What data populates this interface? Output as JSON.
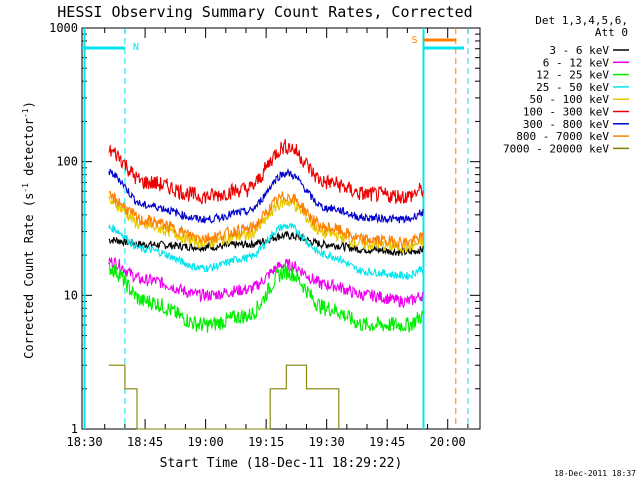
{
  "chart_data": {
    "type": "line",
    "title": "HESSI Observing Summary Count Rates, Corrected",
    "xlabel": "Start Time (18-Dec-11 18:29:22)",
    "ylabel_main": "Corrected Count Rate (s",
    "ylabel_sup1": "-1",
    "ylabel_mid": " detector",
    "ylabel_sup2": "-1",
    "ylabel_end": ")",
    "yscale": "log",
    "ylim": [
      1,
      1000
    ],
    "xlim": [
      "18:29:22",
      "20:08:00"
    ],
    "x_ticks": [
      "18:30",
      "18:45",
      "19:00",
      "19:15",
      "19:30",
      "19:45",
      "20:00"
    ],
    "y_ticks": [
      "1",
      "10",
      "100",
      "1000"
    ],
    "legend_header": [
      "Det 1,3,4,5,6,",
      "Att 0"
    ],
    "legend_placement": "right",
    "footer_date": "18-Dec-2011 18:37",
    "markers": {
      "night_label": "N",
      "saa_label": "S",
      "night_color": "#00e5ee",
      "saa_color": "#ff7f00"
    },
    "series": [
      {
        "name": "3 - 6 keV",
        "color": "#000000",
        "x": [
          "18:36",
          "18:45",
          "19:00",
          "19:10",
          "19:20",
          "19:30",
          "19:40",
          "19:50",
          "19:54"
        ],
        "y": [
          26,
          24,
          23,
          24,
          28,
          24,
          22,
          21,
          22
        ]
      },
      {
        "name": "6 - 12 keV",
        "color": "#ee00ee",
        "x": [
          "18:36",
          "18:45",
          "19:00",
          "19:10",
          "19:20",
          "19:30",
          "19:40",
          "19:50",
          "19:54"
        ],
        "y": [
          18,
          13,
          10,
          11,
          17,
          12,
          10,
          9,
          10
        ]
      },
      {
        "name": "12 - 25 keV",
        "color": "#00ee00",
        "x": [
          "18:36",
          "18:45",
          "19:00",
          "19:10",
          "19:20",
          "19:30",
          "19:40",
          "19:50",
          "19:54"
        ],
        "y": [
          16,
          9,
          6,
          7,
          15,
          8,
          6,
          6,
          7
        ]
      },
      {
        "name": "25 - 50 keV",
        "color": "#00e5ee",
        "x": [
          "18:36",
          "18:45",
          "19:00",
          "19:10",
          "19:20",
          "19:30",
          "19:40",
          "19:50",
          "19:54"
        ],
        "y": [
          32,
          22,
          16,
          19,
          33,
          20,
          15,
          14,
          16
        ]
      },
      {
        "name": "50 - 100 keV",
        "color": "#e6c800",
        "x": [
          "18:36",
          "18:45",
          "19:00",
          "19:10",
          "19:20",
          "19:30",
          "19:40",
          "19:50",
          "19:54"
        ],
        "y": [
          50,
          33,
          25,
          28,
          50,
          29,
          24,
          23,
          25
        ]
      },
      {
        "name": "100 - 300 keV",
        "color": "#ee0000",
        "x": [
          "18:36",
          "18:45",
          "19:00",
          "19:10",
          "19:20",
          "19:30",
          "19:40",
          "19:50",
          "19:54"
        ],
        "y": [
          120,
          70,
          55,
          62,
          130,
          70,
          57,
          55,
          62
        ]
      },
      {
        "name": "300 - 800 keV",
        "color": "#0000cd",
        "x": [
          "18:36",
          "18:45",
          "19:00",
          "19:10",
          "19:20",
          "19:30",
          "19:40",
          "19:50",
          "19:54"
        ],
        "y": [
          82,
          47,
          37,
          42,
          82,
          45,
          38,
          37,
          42
        ]
      },
      {
        "name": "800 - 7000 keV",
        "color": "#ff7f00",
        "x": [
          "18:36",
          "18:45",
          "19:00",
          "19:10",
          "19:20",
          "19:30",
          "19:40",
          "19:50",
          "19:54"
        ],
        "y": [
          54,
          36,
          27,
          31,
          55,
          32,
          26,
          25,
          27
        ]
      },
      {
        "name": "7000 - 20000 keV",
        "color": "#808000",
        "x": [
          "18:36",
          "18:40",
          "18:43",
          "19:16",
          "19:20",
          "19:25",
          "19:30",
          "19:33"
        ],
        "y": [
          3,
          2,
          1,
          2,
          3,
          2,
          2,
          1
        ]
      }
    ]
  }
}
